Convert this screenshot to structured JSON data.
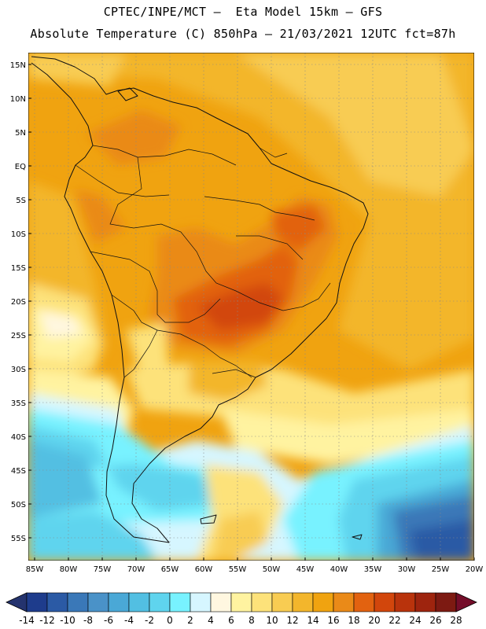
{
  "header": {
    "line1": "CPTEC/INPE/MCT –  Eta Model 15km – GFS",
    "line2": "Absolute Temperature (C) 850hPa – 21/03/2021 12UTC fct=87h"
  },
  "map": {
    "lat_labels": [
      "15N",
      "10N",
      "5N",
      "EQ",
      "5S",
      "10S",
      "15S",
      "20S",
      "25S",
      "30S",
      "35S",
      "40S",
      "45S",
      "50S",
      "55S"
    ],
    "lon_labels": [
      "85W",
      "80W",
      "75W",
      "70W",
      "65W",
      "60W",
      "55W",
      "50W",
      "45W",
      "40W",
      "35W",
      "30W",
      "25W",
      "20W"
    ]
  },
  "colorbar": {
    "labels": [
      "-14",
      "-12",
      "-10",
      "-8",
      "-6",
      "-4",
      "-2",
      "0",
      "2",
      "4",
      "6",
      "8",
      "10",
      "12",
      "14",
      "16",
      "18",
      "20",
      "22",
      "24",
      "26",
      "28"
    ],
    "colors": [
      "#1e3c8c",
      "#2b5aa5",
      "#3a78b8",
      "#4a92c8",
      "#4aa8d6",
      "#52bfe2",
      "#5fd4ee",
      "#78f2ff",
      "#d6f6ff",
      "#fff7e0",
      "#fff3a0",
      "#fde27a",
      "#f8cc52",
      "#f3b62c",
      "#f0a310",
      "#ea8a18",
      "#e26210",
      "#d2460c",
      "#b9330c",
      "#9e240e",
      "#7d1a12"
    ],
    "end_left": "#24336e",
    "end_right": "#740d2a"
  }
}
